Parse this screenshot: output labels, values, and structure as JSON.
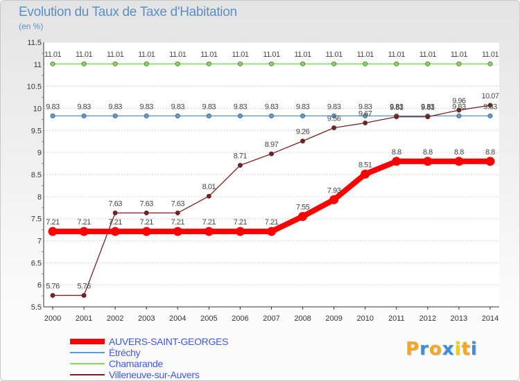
{
  "chart_data": {
    "type": "line",
    "title": "Evolution du Taux de Taxe d'Habitation",
    "subtitle": "(en %)",
    "x": [
      "2000",
      "2001",
      "2002",
      "2003",
      "2004",
      "2005",
      "2006",
      "2007",
      "2008",
      "2009",
      "2010",
      "2011",
      "2012",
      "2013",
      "2014"
    ],
    "ylim": [
      5.5,
      11.5
    ],
    "yticks": [
      "5.5",
      "6",
      "6.5",
      "7",
      "7.5",
      "8",
      "8.5",
      "9",
      "9.5",
      "10",
      "10.5",
      "11",
      "11.5"
    ],
    "grid": "horizontal",
    "series": [
      {
        "name": "AUVERS-SAINT-GEORGES",
        "color": "#ff0000",
        "values": [
          7.21,
          7.21,
          7.21,
          7.21,
          7.21,
          7.21,
          7.21,
          7.21,
          7.55,
          7.93,
          8.51,
          8.8,
          8.8,
          8.8,
          8.8
        ],
        "labels": [
          "7.21",
          "7.21",
          "7.21",
          "7.21",
          "7.21",
          "7.21",
          "7.21",
          "7.21",
          "7.55",
          "7.93",
          "8.51",
          "8.8",
          "8.8",
          "8.8",
          "8.8"
        ]
      },
      {
        "name": "Étréchy",
        "color": "#5a9bd4",
        "values": [
          9.83,
          9.83,
          9.83,
          9.83,
          9.83,
          9.83,
          9.83,
          9.83,
          9.83,
          9.83,
          9.83,
          9.83,
          9.83,
          9.83,
          9.83
        ],
        "labels": [
          "9.83",
          "9.83",
          "9.83",
          "9.83",
          "9.83",
          "9.83",
          "9.83",
          "9.83",
          "9.83",
          "9.83",
          "9.83",
          "9.83",
          "9.83",
          "9.83",
          "9.83"
        ]
      },
      {
        "name": "Chamarande",
        "color": "#7ed957",
        "values": [
          11.01,
          11.01,
          11.01,
          11.01,
          11.01,
          11.01,
          11.01,
          11.01,
          11.01,
          11.01,
          11.01,
          11.01,
          11.01,
          11.01,
          11.01
        ],
        "labels": [
          "11.01",
          "11.01",
          "11.01",
          "11.01",
          "11.01",
          "11.01",
          "11.01",
          "11.01",
          "11.01",
          "11.01",
          "11.01",
          "11.01",
          "11.01",
          "11.01",
          "11.01"
        ]
      },
      {
        "name": "Villeneuve-sur-Auvers",
        "color": "#7a1f1f",
        "values": [
          5.76,
          5.76,
          7.63,
          7.63,
          7.63,
          8.01,
          8.71,
          8.97,
          9.26,
          9.56,
          9.67,
          9.81,
          9.81,
          9.96,
          10.07
        ],
        "labels": [
          "5.76",
          "5.76",
          "7.63",
          "7.63",
          "7.63",
          "8.01",
          "8.71",
          "8.97",
          "9.26",
          "9.56",
          "9.67",
          "9.81",
          "9.81",
          "9.96",
          "10.07"
        ]
      }
    ],
    "legend_position": "bottom-left"
  },
  "logo": {
    "letters": [
      "P",
      "r",
      "o",
      "x",
      "i",
      "t",
      "i"
    ],
    "colors": [
      "#f5a623",
      "#3a8fd8",
      "#f5a623",
      "#3a8fd8",
      "#f5d000",
      "#f5a623",
      "#3a8fd8"
    ]
  }
}
